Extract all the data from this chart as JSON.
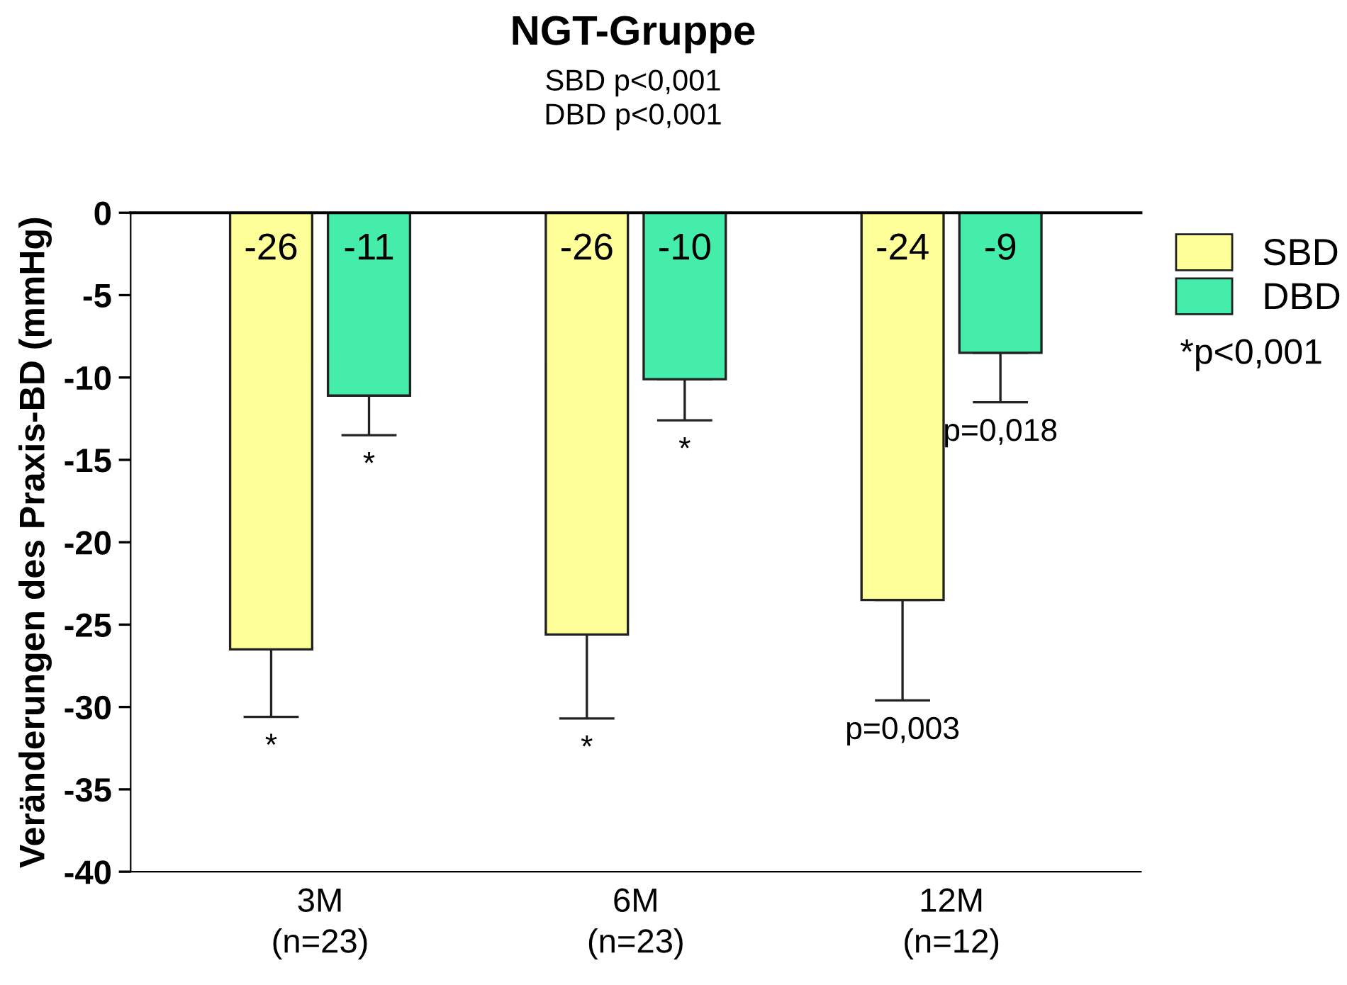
{
  "chart_data": {
    "type": "bar",
    "title": "NGT-Gruppe",
    "subtitle": "SBD p<0,001\nDBD p<0,001",
    "ylabel": "Veränderungen des Praxis-BD (mmHg)",
    "categories": [
      "3M\n(n=23)",
      "6M\n(n=23)",
      "12M\n(n=12)"
    ],
    "series": [
      {
        "name": "SBD",
        "color": "#ffff99",
        "values": [
          -26.5,
          -25.6,
          -23.5
        ],
        "value_labels": [
          "-26",
          "-26",
          "-24"
        ],
        "errors": [
          [
            -30.6,
            -26.5
          ],
          [
            -30.7,
            -25.6
          ],
          [
            -29.6,
            -23.5
          ]
        ]
      },
      {
        "name": "DBD",
        "color": "#44eeaa",
        "values": [
          -11.1,
          -10.1,
          -8.5
        ],
        "value_labels": [
          "-11",
          "-10",
          "-9"
        ],
        "errors": [
          [
            -13.5,
            -11.1
          ],
          [
            -12.6,
            -10.1
          ],
          [
            -11.5,
            -8.5
          ]
        ]
      }
    ],
    "ylim": [
      -40,
      0
    ],
    "yticks": [
      -40,
      -35,
      -30,
      -25,
      -20,
      -15,
      -10,
      -5,
      0
    ],
    "grid": false,
    "legend": "top right",
    "annotations": [
      "*",
      "*",
      "*",
      "*",
      "p=0,003",
      "p=0,018",
      "*p<0,001"
    ]
  }
}
